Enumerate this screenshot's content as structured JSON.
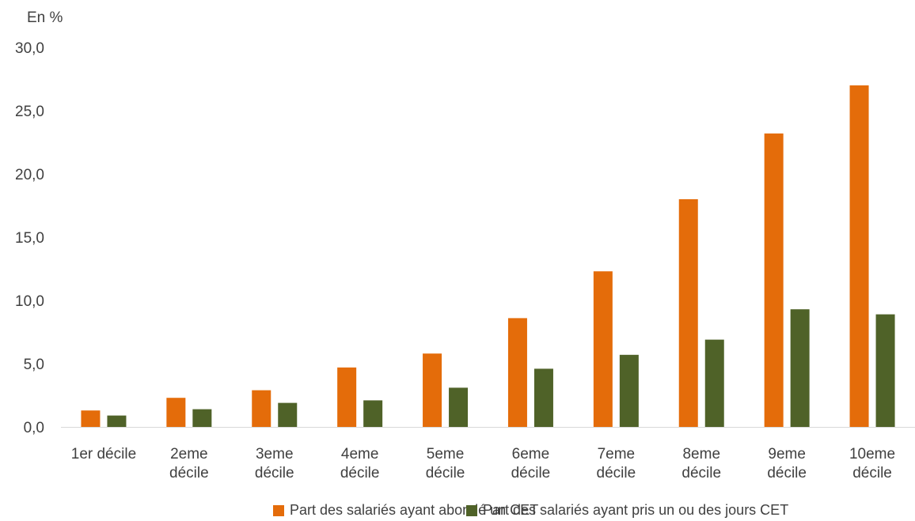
{
  "chart_data": {
    "type": "bar",
    "unit_label": "En %",
    "categories": [
      [
        "1er décile"
      ],
      [
        "2eme",
        "décile"
      ],
      [
        "3eme",
        "décile"
      ],
      [
        "4eme",
        "décile"
      ],
      [
        "5eme",
        "décile"
      ],
      [
        "6eme",
        "décile"
      ],
      [
        "7eme",
        "décile"
      ],
      [
        "8eme",
        "décile"
      ],
      [
        "9eme",
        "décile"
      ],
      [
        "10eme",
        "décile"
      ]
    ],
    "series": [
      {
        "name": "Part des salariés ayant abondé un CET",
        "color": "#E46C0A",
        "values": [
          1.3,
          2.3,
          2.9,
          4.7,
          5.8,
          8.6,
          12.3,
          18.0,
          23.2,
          27.0
        ]
      },
      {
        "name": "Part des salariés ayant pris un ou des jours CET",
        "color": "#4F6228",
        "values": [
          0.9,
          1.4,
          1.9,
          2.1,
          3.1,
          4.6,
          5.7,
          6.9,
          9.3,
          8.9
        ]
      }
    ],
    "ylim": [
      0,
      30
    ],
    "yticks": [
      "0,0",
      "5,0",
      "10,0",
      "15,0",
      "20,0",
      "25,0",
      "30,0"
    ],
    "grid": false,
    "legend_position": "bottom"
  }
}
